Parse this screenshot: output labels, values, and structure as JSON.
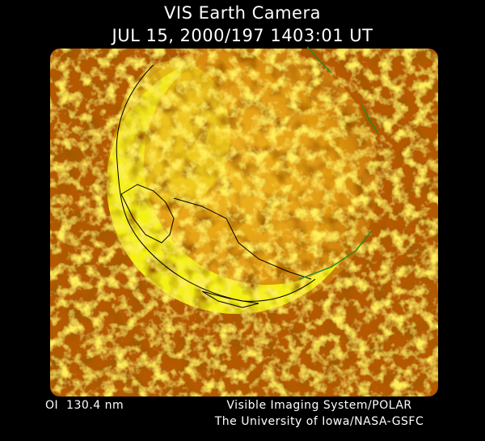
{
  "header": {
    "title": "VIS Earth Camera",
    "timestamp": "JUL 15, 2000/197 1403:01 UT"
  },
  "footer": {
    "wavelength": "OI  130.4 nm",
    "credit": [
      "Visible Imaging System/POLAR",
      "The University of Iowa/NASA-GSFC"
    ]
  }
}
